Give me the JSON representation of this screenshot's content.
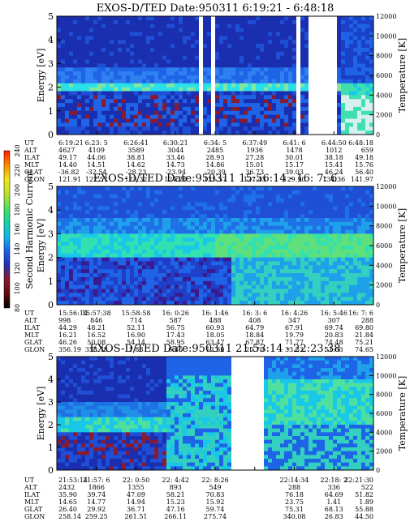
{
  "colorbar": {
    "label": "Second Harmonic Current",
    "ticks": [
      "80",
      "100",
      "120",
      "140",
      "160",
      "180",
      "200",
      "220",
      "240"
    ],
    "colors": [
      "#000000",
      "#600a0a",
      "#8a1a30",
      "#1f2fb0",
      "#1f63e6",
      "#12b8e6",
      "#13d6a6",
      "#4fe05a",
      "#bfe02a",
      "#f0e61a",
      "#ff8c00",
      "#ff1a00"
    ]
  },
  "row_labels": [
    "UT",
    "ALT",
    "ILAT",
    "MLT",
    "GLAT",
    "GLON"
  ],
  "chart_data": [
    {
      "type": "heatmap",
      "title": "EXOS-D/TED   Date:950311   6:19:21 - 6:48:18",
      "ylabel": "Energy [eV]",
      "y2label": "Temperature [K]",
      "ylim": [
        0,
        5
      ],
      "y2lim": [
        0,
        12000
      ],
      "yticks": [
        "0",
        "1",
        "2",
        "3",
        "4",
        "5"
      ],
      "y2ticks": [
        "0",
        "2000",
        "4000",
        "6000",
        "8000",
        "10000",
        "12000"
      ],
      "data_gaps": [
        [
          0.45,
          0.465
        ],
        [
          0.485,
          0.505
        ],
        [
          0.755,
          0.775
        ],
        [
          0.8,
          0.88
        ]
      ],
      "table": [
        [
          "6:19:21",
          "6:23: 5",
          "6:26:41",
          "6:30:21",
          "6:34: 5",
          "6:37:49",
          "6:41: 6",
          "6:44:50",
          "6:48:18"
        ],
        [
          "4627",
          "4109",
          "3589",
          "3044",
          "2485",
          "1936",
          "1478",
          "1012",
          "659"
        ],
        [
          "49.17",
          "44.06",
          "38.81",
          "33.46",
          "28.93",
          "27.28",
          "30.01",
          "38.18",
          "49.18"
        ],
        [
          "14.40",
          "14.51",
          "14.62",
          "14.73",
          "14.86",
          "15.01",
          "15.17",
          "15.41",
          "15.76"
        ],
        [
          "-36.82",
          "-32.54",
          "-28.23",
          "-23.94",
          "-20.39",
          "36.73",
          "39.03",
          "46.24",
          "56.40"
        ],
        [
          "121.91",
          "122.57",
          "123.32",
          "124.28",
          "125.57",
          "127.43",
          "129.90",
          "134.36",
          "141.97"
        ]
      ]
    },
    {
      "type": "heatmap",
      "title": "EXOS-D/TED   Date:950311   15:56:14 - 16: 7: 6",
      "ylabel": "Energy [eV]",
      "y2label": "Temperature [K]",
      "ylim": [
        0,
        5
      ],
      "y2lim": [
        0,
        12000
      ],
      "yticks": [
        "0",
        "1",
        "2",
        "3",
        "4",
        "5"
      ],
      "y2ticks": [
        "0",
        "2000",
        "4000",
        "6000",
        "8000",
        "10000",
        "12000"
      ],
      "data_gaps": [],
      "table": [
        [
          "15:56:14",
          "15:57:38",
          "15:58:58",
          "16: 0:26",
          "16: 1:46",
          "16: 3: 6",
          "16: 4:26",
          "16: 5:46",
          "16: 7: 6"
        ],
        [
          "998",
          "846",
          "714",
          "587",
          "488",
          "408",
          "347",
          "307",
          "288"
        ],
        [
          "44.29",
          "48.21",
          "52.11",
          "56.75",
          "60.93",
          "64.79",
          "67.91",
          "69.74",
          "69.80"
        ],
        [
          "16.21",
          "16.52",
          "16.90",
          "17.43",
          "18.05",
          "18.84",
          "19.79",
          "20.83",
          "21.84"
        ],
        [
          "46.26",
          "50.08",
          "54.14",
          "58.95",
          "63.47",
          "67.87",
          "71.77",
          "74.48",
          "75.21"
        ],
        [
          "356.19",
          "358.78",
          "1.88",
          "6.46",
          "12.30",
          "20.70",
          "33.23",
          "51.63",
          "74.65"
        ]
      ]
    },
    {
      "type": "heatmap",
      "title": "EXOS-D/TED   Date:950311   21:53:14 - 22:23:38",
      "ylabel": "Energy [eV]",
      "y2label": "Temperature [K]",
      "ylim": [
        0,
        5
      ],
      "y2lim": [
        0,
        12000
      ],
      "yticks": [
        "0",
        "1",
        "2",
        "3",
        "4",
        "5"
      ],
      "y2ticks": [
        "0",
        "2000",
        "4000",
        "6000",
        "8000",
        "10000",
        "12000"
      ],
      "data_gaps": [
        [
          0.55,
          0.66
        ]
      ],
      "table": [
        [
          "21:53:14",
          "21:57: 6",
          "22: 0:50",
          "22: 4:42",
          "22: 8:26",
          "",
          "22:14:34",
          "22:18: 2",
          "22:21:30"
        ],
        [
          "2432",
          "1866",
          "1355",
          "893",
          "549",
          "",
          "288",
          "336",
          "522"
        ],
        [
          "35.90",
          "39.74",
          "47.09",
          "58.21",
          "70.83",
          "",
          "76.18",
          "64.69",
          "51.82"
        ],
        [
          "14.65",
          "14.77",
          "14.94",
          "15.23",
          "15.92",
          "",
          "23.75",
          "1.41",
          "1.89"
        ],
        [
          "26.40",
          "29.92",
          "36.71",
          "47.16",
          "59.74",
          "",
          "75.31",
          "68.13",
          "55.88"
        ],
        [
          "258.14",
          "259.25",
          "261.51",
          "266.11",
          "275.74",
          "",
          "340.08",
          "26.83",
          "44.50"
        ]
      ]
    }
  ]
}
